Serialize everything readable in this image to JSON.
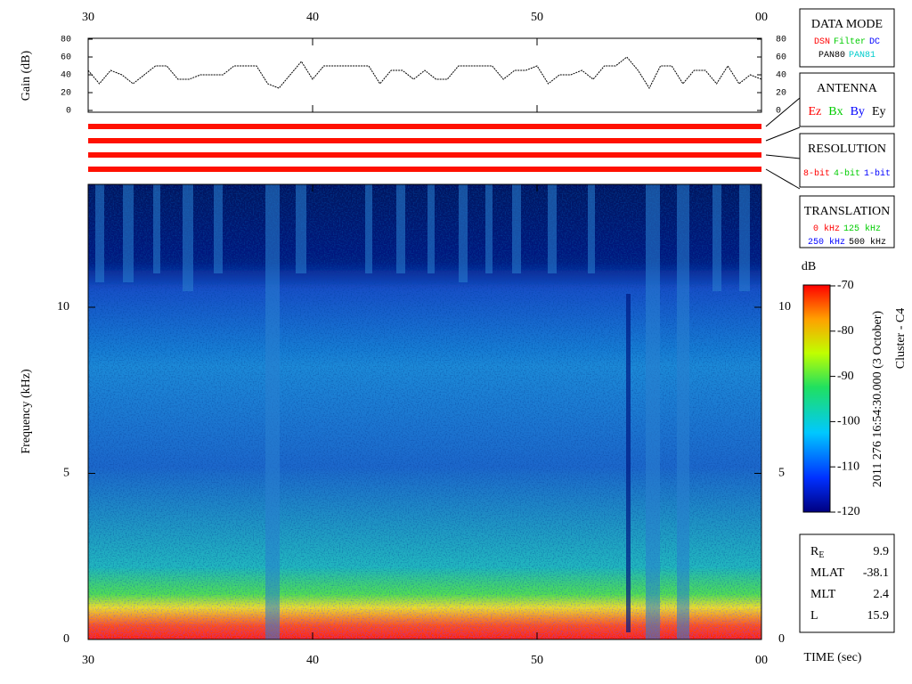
{
  "chart_data": [
    {
      "type": "line",
      "y_label": "Gain (dB)",
      "color": "#000000",
      "x": [
        30,
        30.5,
        31,
        31.5,
        32,
        32.5,
        33,
        33.5,
        34,
        34.5,
        35,
        35.5,
        36,
        36.5,
        37,
        37.5,
        38,
        38.5,
        39,
        39.5,
        40,
        40.5,
        41,
        41.5,
        42,
        42.5,
        43,
        43.5,
        44,
        44.5,
        45,
        45.5,
        46,
        46.5,
        47,
        47.5,
        48,
        48.5,
        49,
        49.5,
        50,
        50.5,
        51,
        51.5,
        52,
        52.5,
        53,
        53.5,
        54,
        54.5,
        55,
        55.5,
        56,
        56.5,
        57,
        57.5,
        58,
        58.5,
        59,
        59.5,
        60
      ],
      "values": [
        45,
        30,
        45,
        40,
        30,
        40,
        50,
        50,
        35,
        35,
        40,
        40,
        40,
        50,
        50,
        50,
        30,
        25,
        40,
        55,
        35,
        50,
        50,
        50,
        50,
        50,
        30,
        45,
        45,
        35,
        45,
        35,
        35,
        50,
        50,
        50,
        50,
        35,
        45,
        45,
        50,
        30,
        40,
        40,
        45,
        35,
        50,
        50,
        60,
        45,
        25,
        50,
        50,
        30,
        45,
        45,
        30,
        50,
        30,
        40,
        35
      ],
      "xlim": [
        30,
        60
      ],
      "xticks": [
        30,
        40,
        50,
        {
          "value": 60,
          "label": "00"
        }
      ],
      "ylim": [
        0,
        80
      ],
      "yticks": [
        0,
        20,
        40,
        60,
        80
      ]
    },
    {
      "type": "heatmap",
      "y_label": "Frequency (kHz)",
      "x_label": "TIME (sec)",
      "xlim": [
        30,
        60
      ],
      "xticks": [
        30,
        40,
        50,
        {
          "value": 60,
          "label": "00"
        }
      ],
      "ylim": [
        0,
        13.7
      ],
      "yticks": [
        0,
        5,
        10
      ],
      "colorbar": {
        "label": "dB",
        "lim": [
          -120,
          -70
        ],
        "ticks": [
          -70,
          -80,
          -90,
          -100,
          -110,
          -120
        ]
      },
      "caption": "2011 276 16:54:30.000 (3 October)",
      "spacecraft": "Cluster - C4"
    }
  ],
  "panels": [
    {
      "title": "DATA MODE",
      "rows": [
        [
          {
            "text": "DSN",
            "color": "#ff0000"
          },
          {
            "text": "Filter",
            "color": "#00cc00"
          },
          {
            "text": "DC",
            "color": "#0000ff"
          }
        ],
        [
          {
            "text": "PAN80",
            "color": "#000000"
          },
          {
            "text": "PAN81",
            "color": "#00cccc"
          }
        ]
      ]
    },
    {
      "title": "ANTENNA",
      "rows": [
        [
          {
            "text": "Ez",
            "color": "#ff0000"
          },
          {
            "text": "Bx",
            "color": "#00cc00"
          },
          {
            "text": "By",
            "color": "#0000ff"
          },
          {
            "text": "Ey",
            "color": "#000000"
          }
        ]
      ]
    },
    {
      "title": "RESOLUTION",
      "rows": [
        [
          {
            "text": "8-bit",
            "color": "#ff0000"
          },
          {
            "text": "4-bit",
            "color": "#00cc00"
          },
          {
            "text": "1-bit",
            "color": "#0000ff"
          }
        ]
      ]
    },
    {
      "title": "TRANSLATION",
      "rows": [
        [
          {
            "text": "0 kHz",
            "color": "#ff0000"
          },
          {
            "text": "125 kHz",
            "color": "#00cc00"
          }
        ],
        [
          {
            "text": "250 kHz",
            "color": "#0000ff"
          },
          {
            "text": "500 kHz",
            "color": "#000000"
          }
        ]
      ]
    }
  ],
  "ephemeris": [
    {
      "label": "R",
      "sub": "E",
      "value": 9.9
    },
    {
      "label": "MLAT",
      "value": -38.1
    },
    {
      "label": "MLT",
      "value": 2.4
    },
    {
      "label": "L",
      "value": 15.9
    }
  ]
}
